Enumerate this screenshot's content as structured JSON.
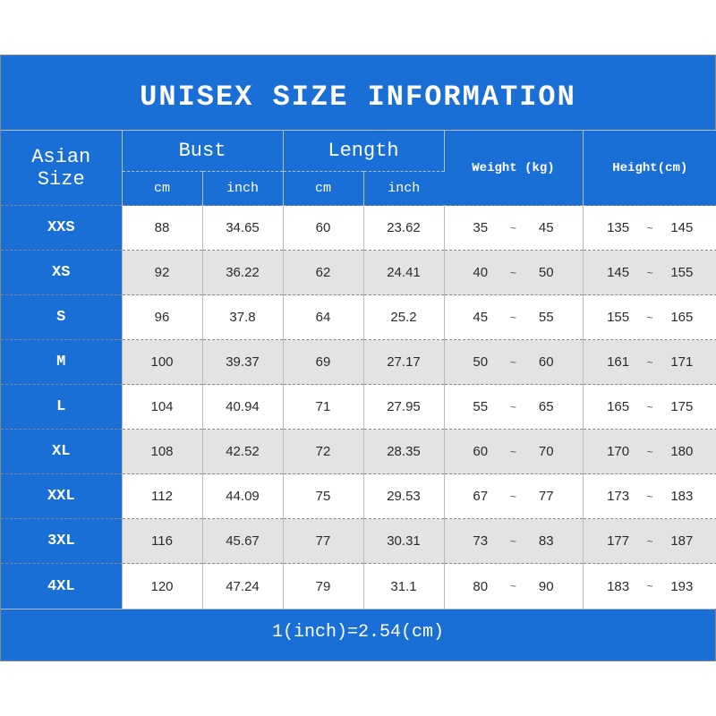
{
  "title": "UNISEX SIZE INFORMATION",
  "headers": {
    "asian_size": "Asian Size",
    "bust": "Bust",
    "length": "Length",
    "weight": "Weight (kg)",
    "height": "Height(cm)",
    "cm": "cm",
    "inch": "inch"
  },
  "footer": "1(inch)=2.54(cm)",
  "style": {
    "brand_color": "#1a6fd6",
    "header_text_color": "#ffffff",
    "cell_bg": "#ffffff",
    "cell_bg_alt": "#e3e3e3",
    "cell_text_color": "#2b2b2b",
    "border_color": "#bbbbbb",
    "dashed_color": "#888888",
    "title_fontsize": 32,
    "header_fontsize": 22,
    "subheader_fontsize": 15,
    "small_header_fontsize": 14,
    "cell_fontsize": 15,
    "footer_fontsize": 20,
    "font_family_title": "Courier New, monospace",
    "font_family_header": "Courier New, monospace",
    "columns": [
      "asian_size",
      "bust_cm",
      "bust_inch",
      "length_cm",
      "length_inch",
      "weight_kg",
      "height_cm"
    ]
  },
  "rows": [
    {
      "size": "XXS",
      "bust_cm": "88",
      "bust_in": "34.65",
      "len_cm": "60",
      "len_in": "23.62",
      "w_lo": "35",
      "w_hi": "45",
      "h_lo": "135",
      "h_hi": "145"
    },
    {
      "size": "XS",
      "bust_cm": "92",
      "bust_in": "36.22",
      "len_cm": "62",
      "len_in": "24.41",
      "w_lo": "40",
      "w_hi": "50",
      "h_lo": "145",
      "h_hi": "155"
    },
    {
      "size": "S",
      "bust_cm": "96",
      "bust_in": "37.8",
      "len_cm": "64",
      "len_in": "25.2",
      "w_lo": "45",
      "w_hi": "55",
      "h_lo": "155",
      "h_hi": "165"
    },
    {
      "size": "M",
      "bust_cm": "100",
      "bust_in": "39.37",
      "len_cm": "69",
      "len_in": "27.17",
      "w_lo": "50",
      "w_hi": "60",
      "h_lo": "161",
      "h_hi": "171"
    },
    {
      "size": "L",
      "bust_cm": "104",
      "bust_in": "40.94",
      "len_cm": "71",
      "len_in": "27.95",
      "w_lo": "55",
      "w_hi": "65",
      "h_lo": "165",
      "h_hi": "175"
    },
    {
      "size": "XL",
      "bust_cm": "108",
      "bust_in": "42.52",
      "len_cm": "72",
      "len_in": "28.35",
      "w_lo": "60",
      "w_hi": "70",
      "h_lo": "170",
      "h_hi": "180"
    },
    {
      "size": "XXL",
      "bust_cm": "112",
      "bust_in": "44.09",
      "len_cm": "75",
      "len_in": "29.53",
      "w_lo": "67",
      "w_hi": "77",
      "h_lo": "173",
      "h_hi": "183"
    },
    {
      "size": "3XL",
      "bust_cm": "116",
      "bust_in": "45.67",
      "len_cm": "77",
      "len_in": "30.31",
      "w_lo": "73",
      "w_hi": "83",
      "h_lo": "177",
      "h_hi": "187"
    },
    {
      "size": "4XL",
      "bust_cm": "120",
      "bust_in": "47.24",
      "len_cm": "79",
      "len_in": "31.1",
      "w_lo": "80",
      "w_hi": "90",
      "h_lo": "183",
      "h_hi": "193"
    }
  ]
}
